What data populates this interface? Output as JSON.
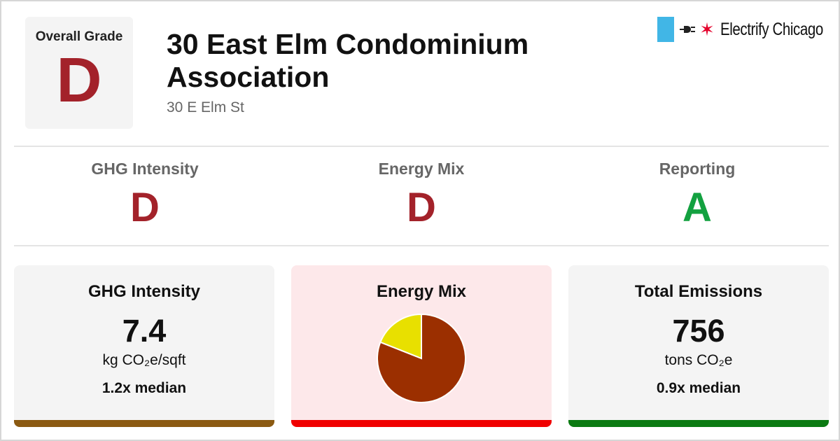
{
  "header": {
    "grade_label": "Overall Grade",
    "overall_grade": "D",
    "title": "30 East Elm Condominium Association",
    "address": "30 E Elm St"
  },
  "brand": {
    "name": "Electrify Chicago",
    "icons": [
      "flag-icon",
      "plug-icon",
      "star-icon"
    ],
    "flag_color": "#41b6e6",
    "star_color": "#e4002b"
  },
  "grades": [
    {
      "label": "GHG Intensity",
      "grade": "D",
      "color": "#a3222a"
    },
    {
      "label": "Energy Mix",
      "grade": "D",
      "color": "#a3222a"
    },
    {
      "label": "Reporting",
      "grade": "A",
      "color": "#13a140"
    }
  ],
  "cards": {
    "ghg": {
      "title": "GHG Intensity",
      "value": "7.4",
      "unit": "kg CO₂e/sqft",
      "median": "1.2x median",
      "bg_color": "#f4f4f4",
      "bar_color": "#8b5a12"
    },
    "energy": {
      "title": "Energy Mix",
      "bg_color": "#fde8ea",
      "bar_color": "#f00000"
    },
    "emissions": {
      "title": "Total Emissions",
      "value": "756",
      "unit": "tons CO₂e",
      "median": "0.9x median",
      "bg_color": "#f4f4f4",
      "bar_color": "#0b7a12"
    }
  },
  "chart_data": {
    "type": "pie",
    "slices": [
      {
        "value": 0.81,
        "color": "#9b2f00"
      },
      {
        "value": 0.19,
        "color": "#e8e000"
      }
    ]
  }
}
